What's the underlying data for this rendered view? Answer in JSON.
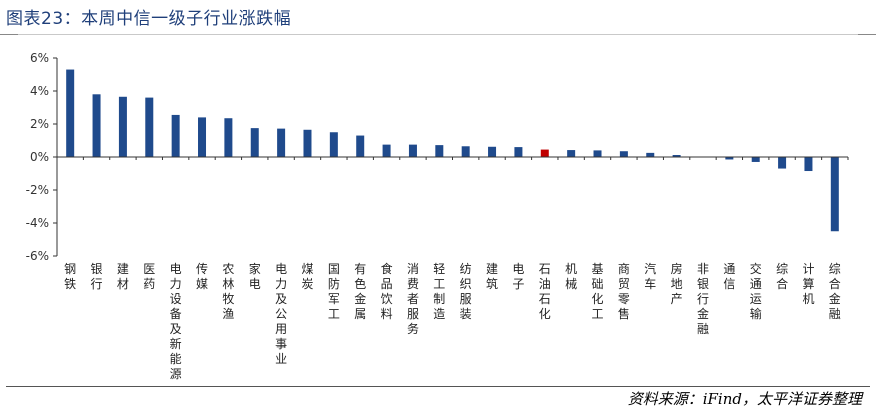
{
  "header": {
    "title": "图表23：本周中信一级子行业涨跌幅"
  },
  "footer": {
    "source": "资料来源：iFind，太平洋证券整理"
  },
  "chart_data": {
    "type": "bar",
    "title": "",
    "xlabel": "",
    "ylabel": "",
    "ylim": [
      -6,
      6
    ],
    "yticks": [
      "6%",
      "4%",
      "2%",
      "0%",
      "-2%",
      "-4%",
      "-6%"
    ],
    "ytick_values": [
      6,
      4,
      2,
      0,
      -2,
      -4,
      -6
    ],
    "grid": false,
    "colors": {
      "default": "#1f4a8c",
      "highlight": "#c00000"
    },
    "highlight_category": "石油石化",
    "categories": [
      "钢铁",
      "银行",
      "建材",
      "医药",
      "电力设备及新能源",
      "传媒",
      "农林牧渔",
      "家电",
      "电力及公用事业",
      "煤炭",
      "国防军工",
      "有色金属",
      "食品饮料",
      "消费者服务",
      "轻工制造",
      "纺织服装",
      "建筑",
      "电子",
      "石油石化",
      "机械",
      "基础化工",
      "商贸零售",
      "汽车",
      "房地产",
      "非银行金融",
      "通信",
      "交通运输",
      "综合",
      "计算机",
      "综合金融"
    ],
    "values": [
      5.3,
      3.8,
      3.65,
      3.6,
      2.55,
      2.4,
      2.35,
      1.75,
      1.72,
      1.65,
      1.5,
      1.3,
      0.75,
      0.75,
      0.72,
      0.65,
      0.62,
      0.6,
      0.45,
      0.42,
      0.4,
      0.35,
      0.25,
      0.12,
      0.02,
      -0.15,
      -0.3,
      -0.7,
      -0.85,
      -4.5
    ]
  }
}
